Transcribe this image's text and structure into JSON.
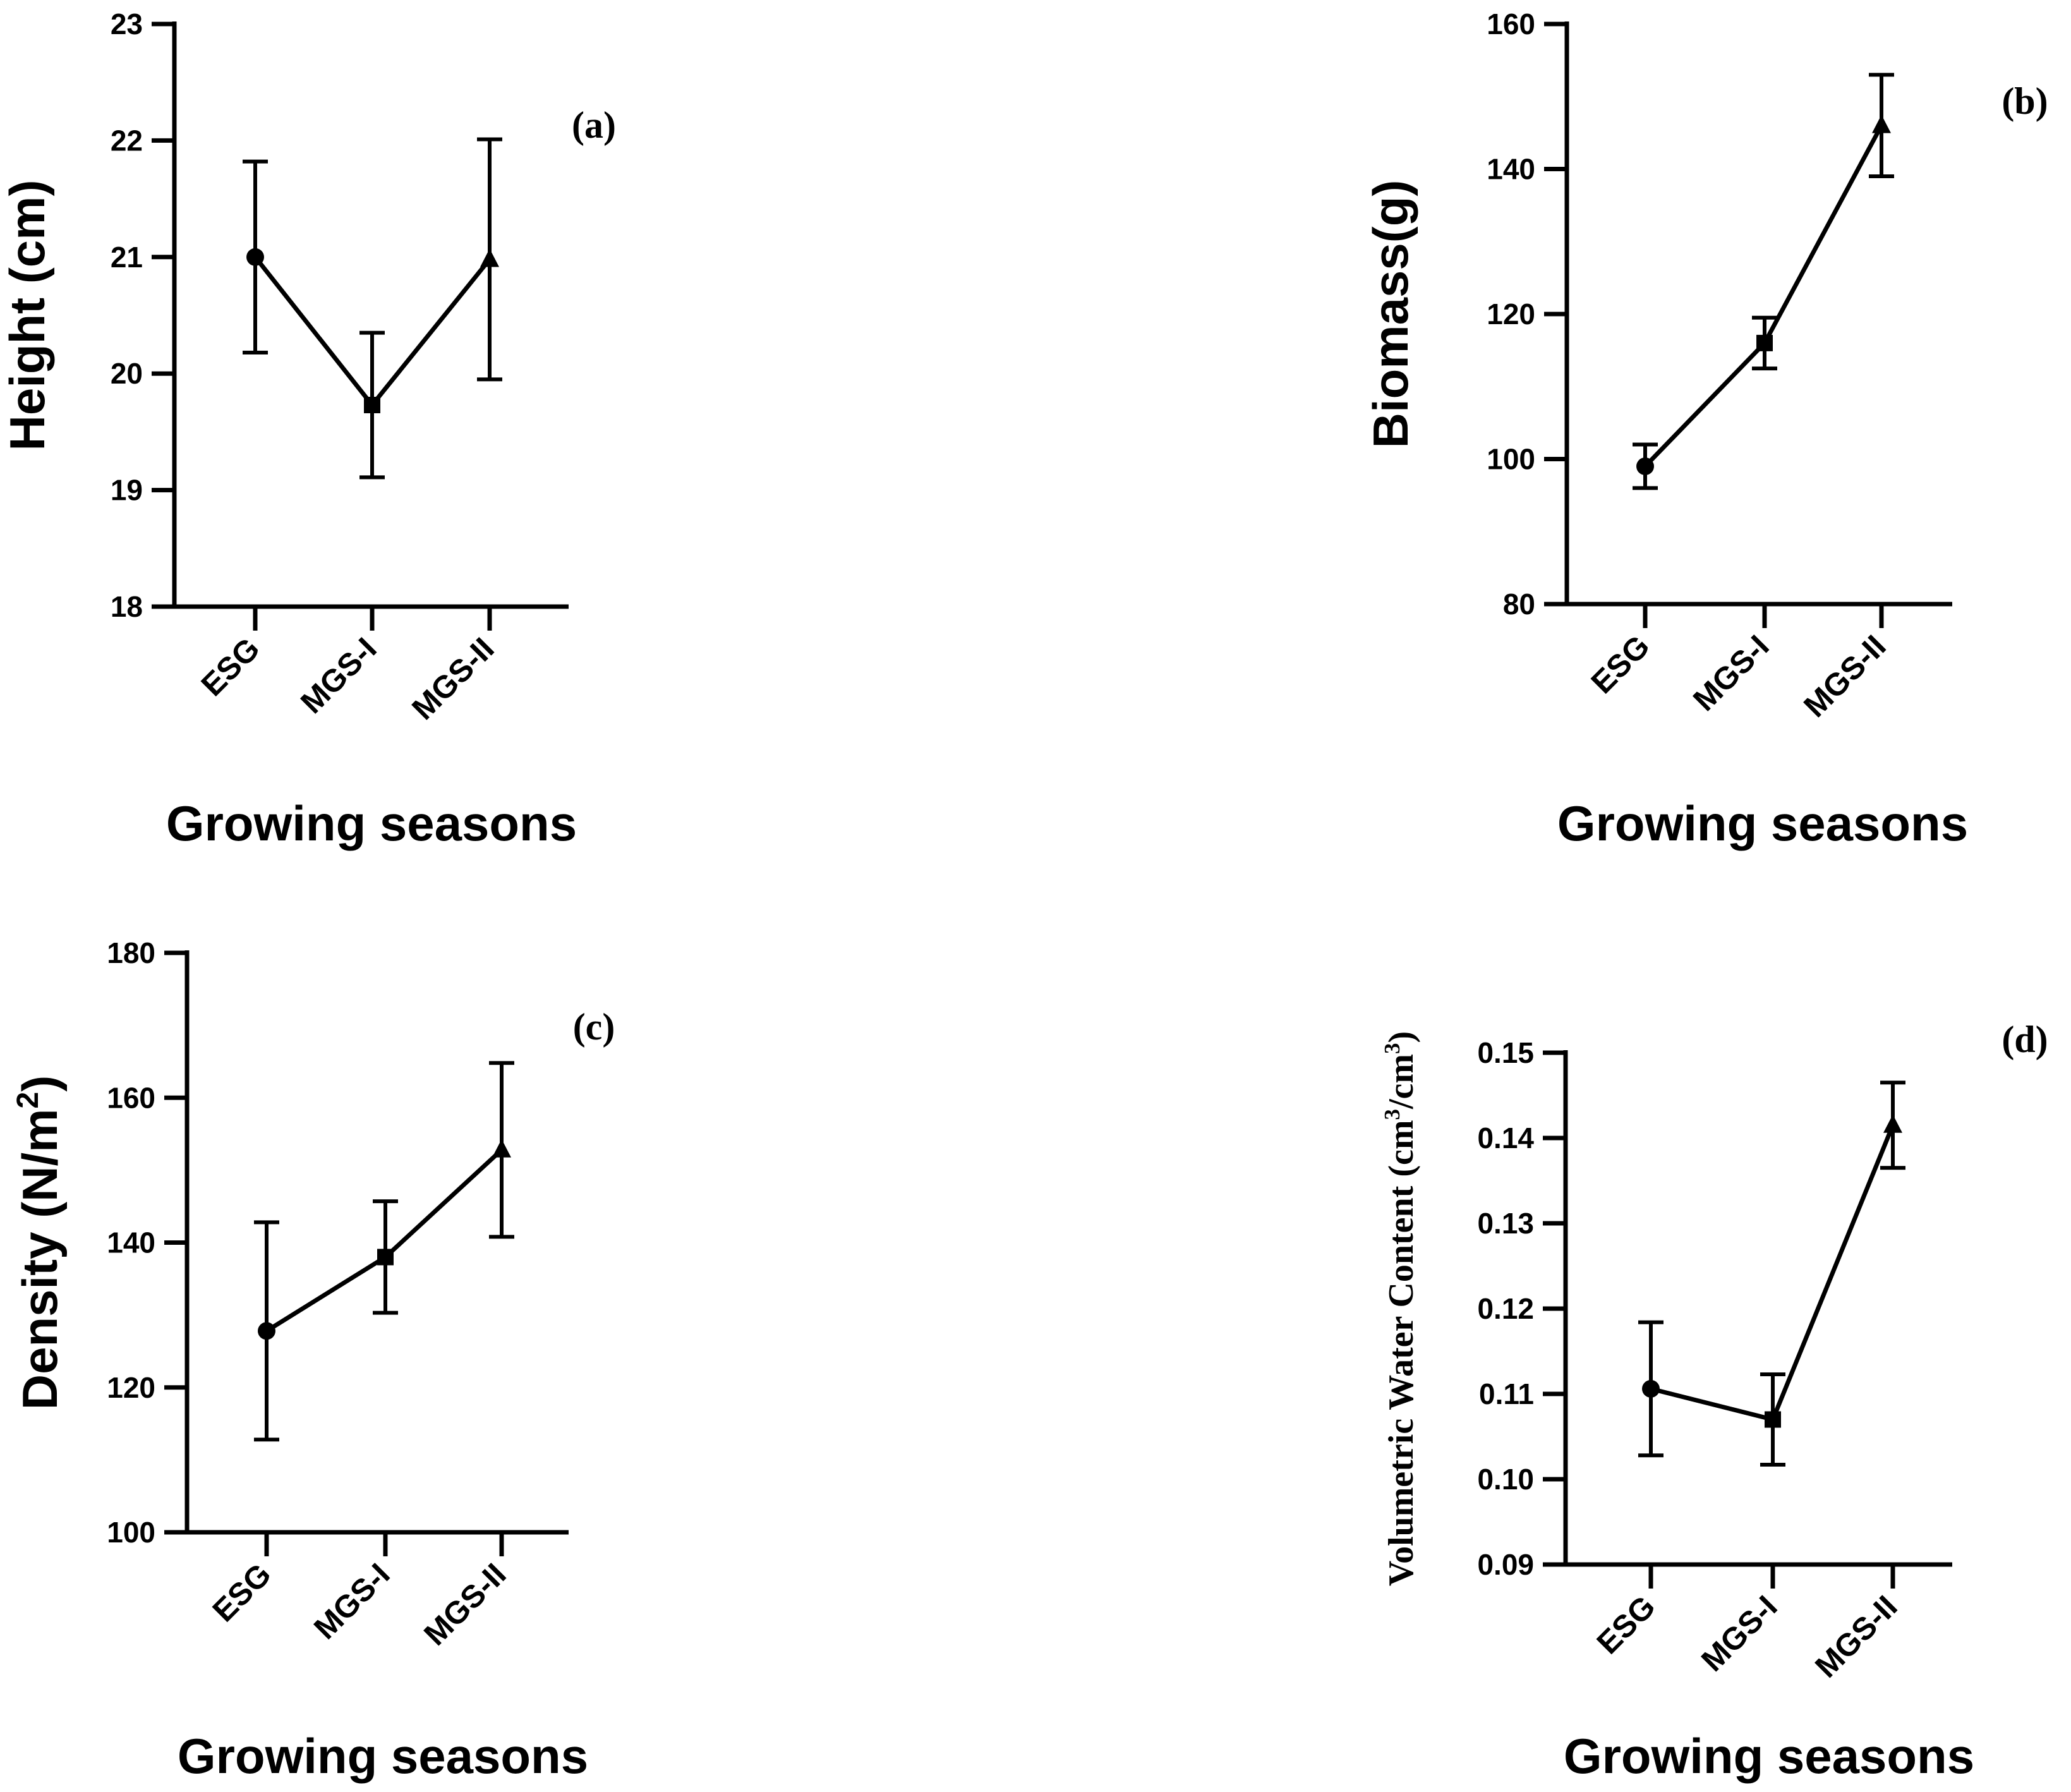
{
  "chart_data": [
    {
      "type": "line",
      "panel": "(a)",
      "categories": [
        "ESG",
        "MGS-I",
        "MGS-II"
      ],
      "values": [
        21.0,
        19.73,
        20.98
      ],
      "errors": [
        0.82,
        0.62,
        1.03
      ],
      "markers": [
        "circle",
        "square",
        "triangle"
      ],
      "ylabel": "Height (cm)",
      "ylabel_sup": "",
      "ylabel_end": "",
      "ylabel_font": "sans",
      "xlabel": "Growing seasons",
      "ylim": [
        18,
        23
      ],
      "yticks": [
        18,
        19,
        20,
        21,
        22,
        23
      ],
      "ytick_labels": [
        "18",
        "19",
        "20",
        "21",
        "22",
        "23"
      ],
      "grid": false
    },
    {
      "type": "line",
      "panel": "(b)",
      "categories": [
        "ESG",
        "MGS-I",
        "MGS-II"
      ],
      "values": [
        99,
        116,
        146
      ],
      "errors": [
        3,
        3.5,
        7
      ],
      "markers": [
        "circle",
        "square",
        "triangle"
      ],
      "ylabel": "Biomass(g)",
      "ylabel_sup": "",
      "ylabel_end": "",
      "ylabel_font": "sans",
      "xlabel": "Growing seasons",
      "ylim": [
        80,
        160
      ],
      "yticks": [
        80,
        100,
        120,
        140,
        160
      ],
      "ytick_labels": [
        "80",
        "100",
        "120",
        "140",
        "160"
      ],
      "grid": false
    },
    {
      "type": "line",
      "panel": "(c)",
      "categories": [
        "ESG",
        "MGS-I",
        "MGS-II"
      ],
      "values": [
        127.8,
        138,
        152.8
      ],
      "errors": [
        15,
        7.7,
        12
      ],
      "markers": [
        "circle",
        "square",
        "triangle"
      ],
      "ylabel": "Density (N/m",
      "ylabel_sup": "2",
      "ylabel_end": ")",
      "ylabel_font": "sans",
      "xlabel": "Growing seasons",
      "ylim": [
        100,
        180
      ],
      "yticks": [
        100,
        120,
        140,
        160,
        180
      ],
      "ytick_labels": [
        "100",
        "120",
        "140",
        "160",
        "180"
      ],
      "grid": false
    },
    {
      "type": "line",
      "panel": "(d)",
      "categories": [
        "ESG",
        "MGS-I",
        "MGS-II"
      ],
      "values": [
        0.1106,
        0.107,
        0.1415
      ],
      "errors": [
        0.0078,
        0.0053,
        0.005
      ],
      "markers": [
        "circle",
        "square",
        "triangle"
      ],
      "ylabel": "Volumetric Water Content (cm",
      "ylabel_sup": "3",
      "ylabel_mid": "/cm",
      "ylabel_sup2": "3",
      "ylabel_end": ")",
      "ylabel_font": "serif",
      "xlabel": "Growing seasons",
      "ylim": [
        0.09,
        0.15
      ],
      "yticks": [
        0.09,
        0.1,
        0.11,
        0.12,
        0.13,
        0.14,
        0.15
      ],
      "ytick_labels": [
        "0.09",
        "0.10",
        "0.11",
        "0.12",
        "0.13",
        "0.14",
        "0.15"
      ],
      "grid": false
    }
  ],
  "colors": {
    "ink": "#000000",
    "background": "#ffffff"
  }
}
